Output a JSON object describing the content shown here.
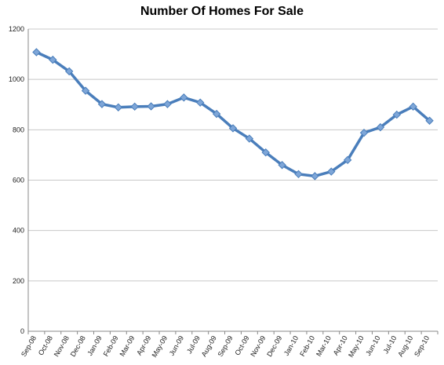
{
  "chart_data": {
    "type": "line",
    "title": "Number Of Homes For Sale",
    "xlabel": "",
    "ylabel": "",
    "categories": [
      "Sep-08",
      "Oct-08",
      "Nov-08",
      "Dec-08",
      "Jan-09",
      "Feb-09",
      "Mar-09",
      "Apr-09",
      "May-09",
      "Jun-09",
      "Jul-09",
      "Aug-09",
      "Sep-09",
      "Oct-09",
      "Nov-09",
      "Dec-09",
      "Jan-10",
      "Feb-10",
      "Mar-10",
      "Apr-10",
      "May-10",
      "Jun-10",
      "Jul-10",
      "Aug-10",
      "Sep-10"
    ],
    "series": [
      {
        "values": [
          1108,
          1078,
          1032,
          955,
          902,
          889,
          892,
          893,
          902,
          928,
          908,
          863,
          806,
          765,
          710,
          660,
          624,
          616,
          634,
          680,
          788,
          810,
          860,
          892,
          836
        ],
        "color": "#4a7ebb"
      }
    ],
    "ylim": [
      0,
      1200
    ],
    "yticks": [
      0,
      200,
      400,
      600,
      800,
      1000,
      1200
    ],
    "grid": true,
    "legend": "none"
  }
}
